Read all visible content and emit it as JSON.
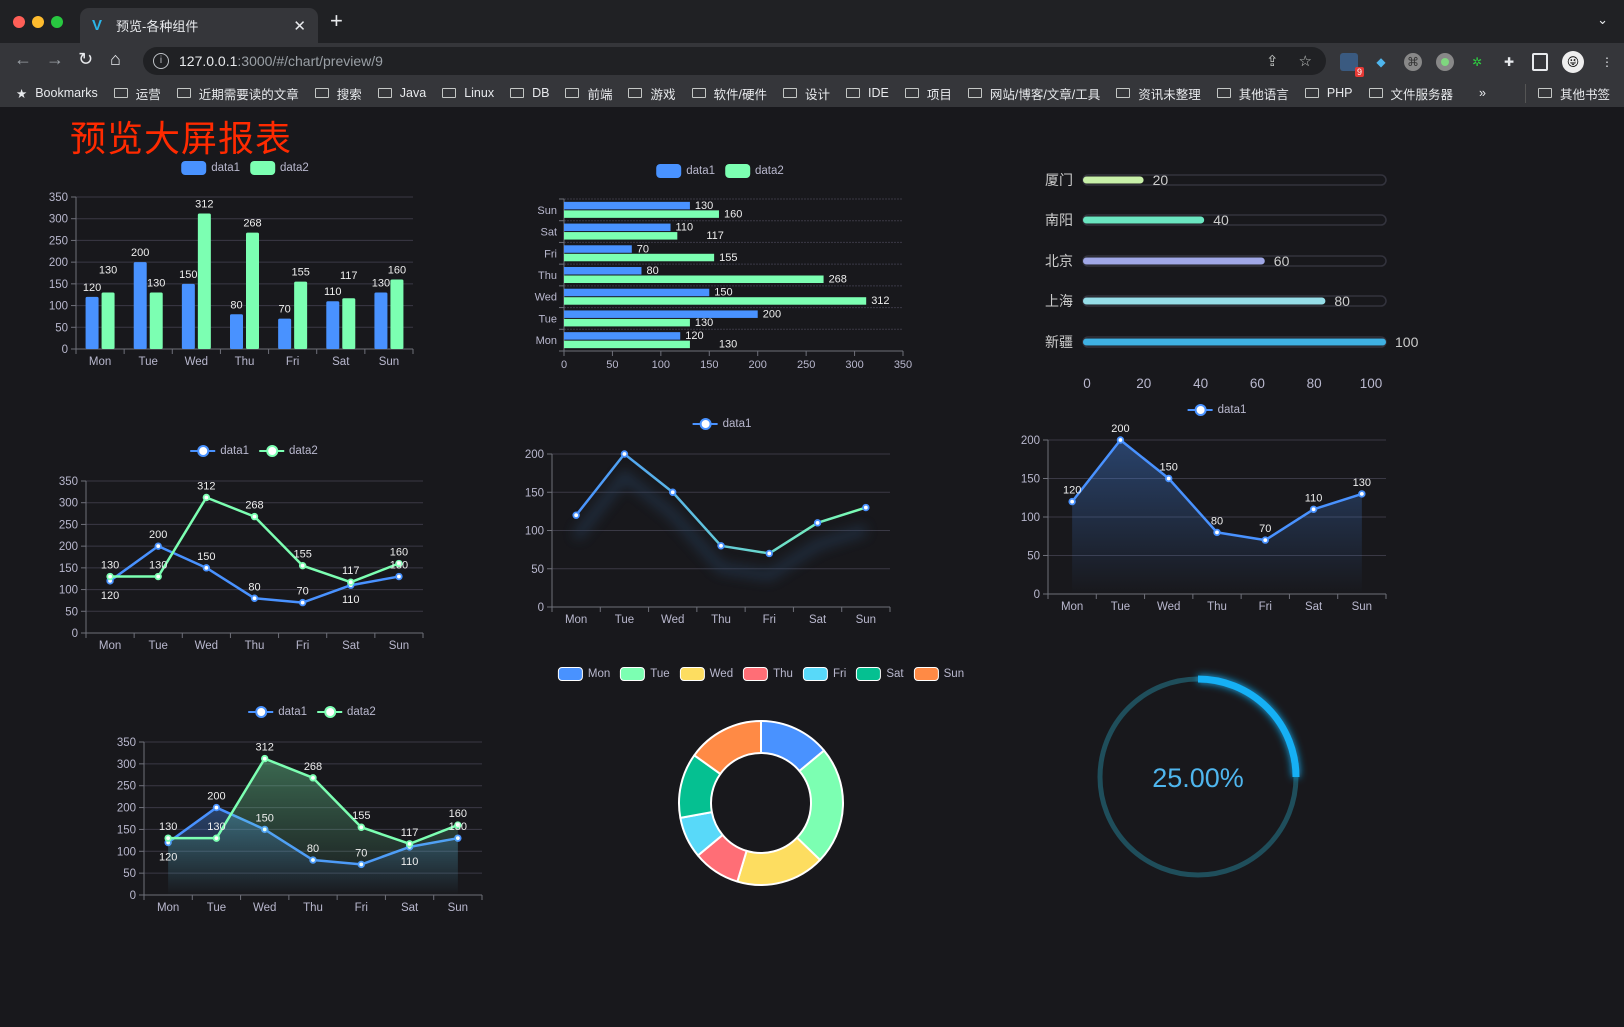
{
  "browser": {
    "tab_title": "预览-各种组件",
    "url_host": "127.0.0.1",
    "url_rest": ":3000/#/chart/preview/9",
    "extension_badge": "9",
    "bookmarks_label": "Bookmarks",
    "bookmarks": [
      "运营",
      "近期需要读的文章",
      "搜索",
      "Java",
      "Linux",
      "DB",
      "前端",
      "游戏",
      "软件/硬件",
      "设计",
      "IDE",
      "项目",
      "网站/博客/文章/工具",
      "资讯未整理",
      "其他语言",
      "PHP",
      "文件服务器"
    ],
    "more": "»",
    "other_bookmarks": "其他书签"
  },
  "page": {
    "title": "预览大屏报表",
    "title_color": "#ff2a00"
  },
  "chart_data": [
    {
      "type": "bar",
      "categories": [
        "Mon",
        "Tue",
        "Wed",
        "Thu",
        "Fri",
        "Sat",
        "Sun"
      ],
      "series": [
        {
          "name": "data1",
          "values": [
            120,
            200,
            150,
            80,
            70,
            110,
            130
          ],
          "color": "#4992ff"
        },
        {
          "name": "data2",
          "values": [
            130,
            130,
            312,
            268,
            155,
            117,
            160
          ],
          "color": "#7cffb2"
        }
      ],
      "ylim": [
        0,
        350
      ],
      "yticks": [
        0,
        50,
        100,
        150,
        200,
        250,
        300,
        350
      ],
      "grid": true,
      "legend": "top"
    },
    {
      "type": "bar",
      "orientation": "horizontal",
      "categories": [
        "Mon",
        "Tue",
        "Wed",
        "Thu",
        "Fri",
        "Sat",
        "Sun"
      ],
      "series": [
        {
          "name": "data1",
          "values": [
            120,
            200,
            150,
            80,
            70,
            110,
            130
          ],
          "color": "#4992ff"
        },
        {
          "name": "data2",
          "values": [
            130,
            130,
            312,
            268,
            155,
            117,
            160
          ],
          "color": "#7cffb2"
        }
      ],
      "xlim": [
        0,
        350
      ],
      "xticks": [
        0,
        50,
        100,
        150,
        200,
        250,
        300,
        350
      ],
      "grid": true,
      "legend": "top"
    },
    {
      "type": "bar",
      "orientation": "horizontal",
      "style": "progress",
      "categories": [
        "厦门",
        "南阳",
        "北京",
        "上海",
        "新疆"
      ],
      "values": [
        20,
        40,
        60,
        80,
        100
      ],
      "colors": [
        "#c8f0a8",
        "#6be6c1",
        "#a0a7e6",
        "#96dee8",
        "#3fb1e3"
      ],
      "xlim": [
        0,
        100
      ],
      "xticks": [
        0,
        20,
        40,
        60,
        80,
        100
      ]
    },
    {
      "type": "line",
      "categories": [
        "Mon",
        "Tue",
        "Wed",
        "Thu",
        "Fri",
        "Sat",
        "Sun"
      ],
      "series": [
        {
          "name": "data1",
          "values": [
            120,
            200,
            150,
            80,
            70,
            110,
            130
          ],
          "color": "#4992ff"
        },
        {
          "name": "data2",
          "values": [
            130,
            130,
            312,
            268,
            155,
            117,
            160
          ],
          "color": "#7cffb2"
        }
      ],
      "ylim": [
        0,
        350
      ],
      "yticks": [
        0,
        50,
        100,
        150,
        200,
        250,
        300,
        350
      ],
      "show_labels": true,
      "area": false,
      "grid": true,
      "legend": "top"
    },
    {
      "type": "line",
      "categories": [
        "Mon",
        "Tue",
        "Wed",
        "Thu",
        "Fri",
        "Sat",
        "Sun"
      ],
      "series": [
        {
          "name": "data1",
          "values": [
            120,
            200,
            150,
            80,
            70,
            110,
            130
          ],
          "color": "#4992ff",
          "gradient_to": "#7cffb2"
        }
      ],
      "ylim": [
        0,
        200
      ],
      "yticks": [
        0,
        50,
        100,
        150,
        200
      ],
      "show_labels": false,
      "area": false,
      "shadow": true,
      "grid": true,
      "legend": "top"
    },
    {
      "type": "area",
      "categories": [
        "Mon",
        "Tue",
        "Wed",
        "Thu",
        "Fri",
        "Sat",
        "Sun"
      ],
      "series": [
        {
          "name": "data1",
          "values": [
            120,
            200,
            150,
            80,
            70,
            110,
            130
          ],
          "color": "#4992ff"
        }
      ],
      "ylim": [
        0,
        200
      ],
      "yticks": [
        0,
        50,
        100,
        150,
        200
      ],
      "show_labels": true,
      "area": true,
      "grid": true,
      "legend": "top"
    },
    {
      "type": "area",
      "categories": [
        "Mon",
        "Tue",
        "Wed",
        "Thu",
        "Fri",
        "Sat",
        "Sun"
      ],
      "series": [
        {
          "name": "data1",
          "values": [
            120,
            200,
            150,
            80,
            70,
            110,
            130
          ],
          "color": "#4992ff"
        },
        {
          "name": "data2",
          "values": [
            130,
            130,
            312,
            268,
            155,
            117,
            160
          ],
          "color": "#7cffb2"
        }
      ],
      "ylim": [
        0,
        350
      ],
      "yticks": [
        0,
        50,
        100,
        150,
        200,
        250,
        300,
        350
      ],
      "show_labels": true,
      "area": true,
      "grid": true,
      "legend": "top"
    },
    {
      "type": "pie",
      "style": "donut",
      "categories": [
        "Mon",
        "Tue",
        "Wed",
        "Thu",
        "Fri",
        "Sat",
        "Sun"
      ],
      "values": [
        120,
        200,
        150,
        80,
        70,
        110,
        130
      ],
      "colors": [
        "#4992ff",
        "#7cffb2",
        "#fddd60",
        "#ff6e76",
        "#58d9f9",
        "#05c091",
        "#ff8a45"
      ],
      "legend": "top"
    },
    {
      "type": "gauge",
      "style": "ring-progress",
      "value": 0.25,
      "label": "25.00%",
      "track_color": "#1f4e5b",
      "bar_color": "#12b0f5",
      "text_color": "#4fb6ee"
    }
  ]
}
